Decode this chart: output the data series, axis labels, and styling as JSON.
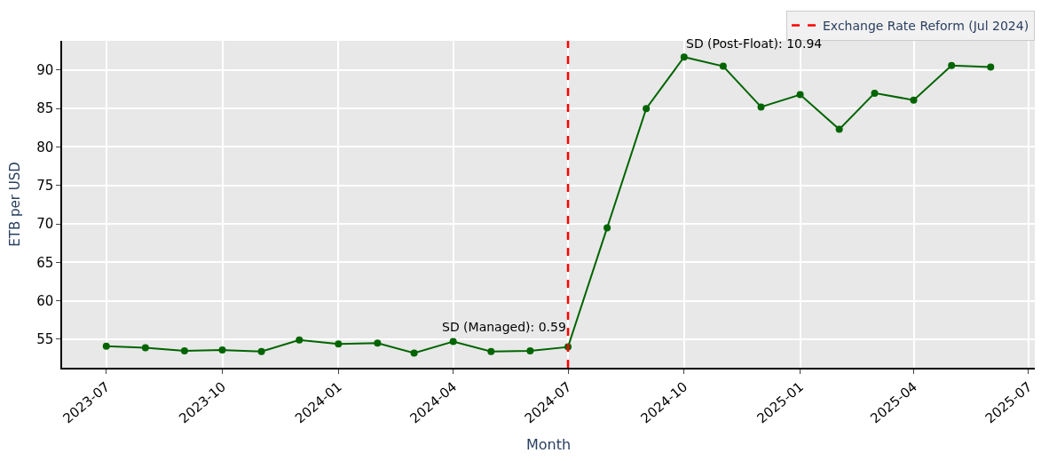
{
  "chart_data": {
    "type": "line",
    "xlabel": "Month",
    "ylabel": "ETB per USD",
    "x": [
      "2023-07",
      "2023-08",
      "2023-09",
      "2023-10",
      "2023-11",
      "2023-12",
      "2024-01",
      "2024-02",
      "2024-03",
      "2024-04",
      "2024-05",
      "2024-06",
      "2024-07",
      "2024-08",
      "2024-09",
      "2024-10",
      "2024-11",
      "2024-12",
      "2025-01",
      "2025-02",
      "2025-03",
      "2025-04",
      "2025-05",
      "2025-06"
    ],
    "series": [
      {
        "color": "#006400",
        "values": [
          54.1,
          53.9,
          53.5,
          53.6,
          53.4,
          54.9,
          54.4,
          54.5,
          53.2,
          54.7,
          53.4,
          53.5,
          54.0,
          69.5,
          85.0,
          91.7,
          90.5,
          85.2,
          86.8,
          82.3,
          87.0,
          86.1,
          90.6,
          90.4
        ]
      }
    ],
    "xlim": [
      "2023-05-27",
      "2025-07-06"
    ],
    "xticks": [
      {
        "value": "2023-07",
        "label": "2023-07"
      },
      {
        "value": "2023-10",
        "label": "2023-10"
      },
      {
        "value": "2024-01",
        "label": "2024-01"
      },
      {
        "value": "2024-04",
        "label": "2024-04"
      },
      {
        "value": "2024-07",
        "label": "2024-07"
      },
      {
        "value": "2024-10",
        "label": "2024-10"
      },
      {
        "value": "2025-01",
        "label": "2025-01"
      },
      {
        "value": "2025-04",
        "label": "2025-04"
      },
      {
        "value": "2025-07",
        "label": "2025-07"
      }
    ],
    "ylim": [
      51.3,
      93.8
    ],
    "yticks": [
      55,
      60,
      65,
      70,
      75,
      80,
      85,
      90
    ],
    "ref_lines": [
      {
        "axis": "x",
        "value": "2024-07-01",
        "label": "Exchange Rate Reform (Jul 2024)",
        "color": "#ff0000",
        "line_style": "dashed"
      }
    ],
    "annotations": [
      {
        "text": "SD (Managed): 0.59",
        "x": "2024-07-01",
        "y": 55.5
      },
      {
        "text": "SD (Post-Float): 10.94",
        "x": "2024-10",
        "y": 92.3
      }
    ],
    "grid": true,
    "marker": "circle",
    "line_style": "solid",
    "legend": "top right"
  }
}
